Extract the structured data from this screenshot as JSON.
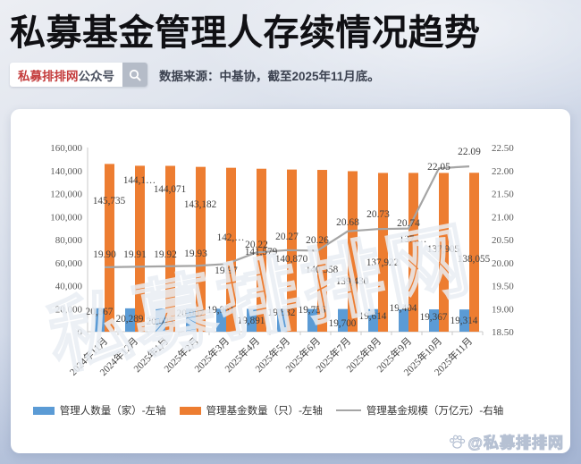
{
  "header": {
    "title": "私募基金管理人存续情况趋势",
    "badge": {
      "brand": "私募排排网",
      "suffix": "公众号"
    },
    "source_note": "数据来源：中基协，截至2025年11月底。"
  },
  "watermark": {
    "center": "私募排排网",
    "corner": "@私募排排网"
  },
  "chart_data": {
    "type": "bar+line combo",
    "categories": [
      "2024年11月",
      "2024年12月",
      "2025年1月",
      "2025年2月",
      "2025年3月",
      "2025年4月",
      "2025年5月",
      "2025年6月",
      "2025年7月",
      "2025年8月",
      "2025年9月",
      "2025年10月",
      "2025年11月"
    ],
    "series": [
      {
        "name": "管理人数量（家）-左轴",
        "type": "bar",
        "axis": "left",
        "color": "#5B9BD5",
        "values": [
          20367,
          20289,
          20025,
          20007,
          19951,
          19891,
          19832,
          19756,
          19700,
          19614,
          19404,
          19367,
          19314
        ],
        "labels": [
          "20,367",
          "20,289",
          "20,025",
          "20,007",
          "19,951",
          "19,891",
          "19,832",
          "19,756",
          "19,700",
          "19,614",
          "19,404",
          "19,367",
          "19,314"
        ]
      },
      {
        "name": "管理基金数量（只）-左轴",
        "type": "bar",
        "axis": "left",
        "color": "#ED7D31",
        "values": [
          145735,
          144150,
          144071,
          143182,
          142400,
          141579,
          140870,
          140558,
          139430,
          137922,
          137950,
          137905,
          138055
        ],
        "labels": [
          "145,735",
          "144,1…",
          "144,071",
          "143,182",
          "142,…",
          "141,579",
          "140,870",
          "140,558",
          "139,430",
          "137,922",
          "137,…",
          "137,905",
          "138,055"
        ]
      },
      {
        "name": "管理基金规模（万亿元）-右轴",
        "type": "line",
        "axis": "right",
        "color": "#A5A5A5",
        "values": [
          19.9,
          19.91,
          19.92,
          19.93,
          19.97,
          20.22,
          20.27,
          20.26,
          20.68,
          20.73,
          20.74,
          22.05,
          22.09
        ],
        "labels": [
          "19.90",
          "19.91",
          "19.92",
          "19.93",
          "19.97",
          "20.22",
          "20.27",
          "20.26",
          "20.68",
          "20.73",
          "20.74",
          "22.05",
          "22.09"
        ]
      }
    ],
    "left_axis": {
      "min": 0,
      "max": 160000,
      "step": 20000,
      "ticks": [
        "160,000",
        "140,000",
        "120,000",
        "100,000",
        "80,000",
        "60,000",
        "40,000",
        "20,000",
        "0"
      ]
    },
    "right_axis": {
      "min": 18.5,
      "max": 22.5,
      "step": 0.5,
      "ticks": [
        "22.50",
        "22.00",
        "21.50",
        "21.00",
        "20.50",
        "20.00",
        "19.50",
        "19.00",
        "18.50"
      ]
    },
    "legend_position": "bottom",
    "grid": false
  }
}
